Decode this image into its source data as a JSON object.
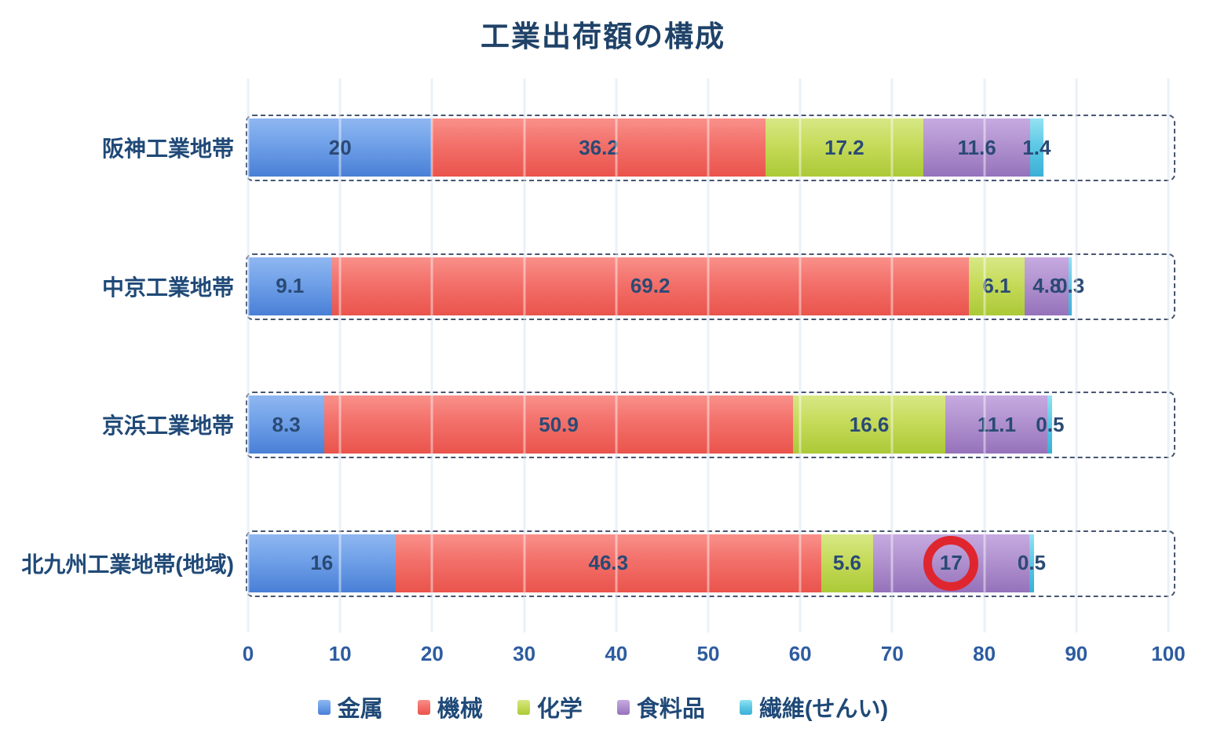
{
  "title": "工業出荷額の構成",
  "chart_data": {
    "type": "bar",
    "orientation": "horizontal",
    "stacked": true,
    "title": "工業出荷額の構成",
    "categories": [
      "阪神工業地帯",
      "中京工業地帯",
      "京浜工業地帯",
      "北九州工業地帯(地域)"
    ],
    "series": [
      {
        "name": "金属",
        "color": "#6FA0E8",
        "values": [
          20,
          9.1,
          8.3,
          16
        ]
      },
      {
        "name": "機械",
        "color": "#F3706A",
        "values": [
          36.2,
          69.2,
          50.9,
          46.3
        ]
      },
      {
        "name": "化学",
        "color": "#C6DB5A",
        "values": [
          17.2,
          6.1,
          16.6,
          5.6
        ]
      },
      {
        "name": "食料品",
        "color": "#B192CF",
        "values": [
          11.6,
          4.8,
          11.1,
          17
        ]
      },
      {
        "name": "繊維(せんい)",
        "color": "#5FC9E6",
        "values": [
          1.4,
          0.3,
          0.5,
          0.5
        ]
      }
    ],
    "xlim": [
      0,
      100
    ],
    "x_ticks": [
      0,
      10,
      20,
      30,
      40,
      50,
      60,
      70,
      80,
      90,
      100
    ],
    "grid": true,
    "gridline_color": "#d9e6f4",
    "legend_position": "bottom",
    "annotation": {
      "type": "circle",
      "color": "#DF262F",
      "category": "北九州工業地帯(地域)",
      "series": "食料品",
      "highlighted_value": 17,
      "row_index": 3,
      "segment_index": 3
    }
  }
}
